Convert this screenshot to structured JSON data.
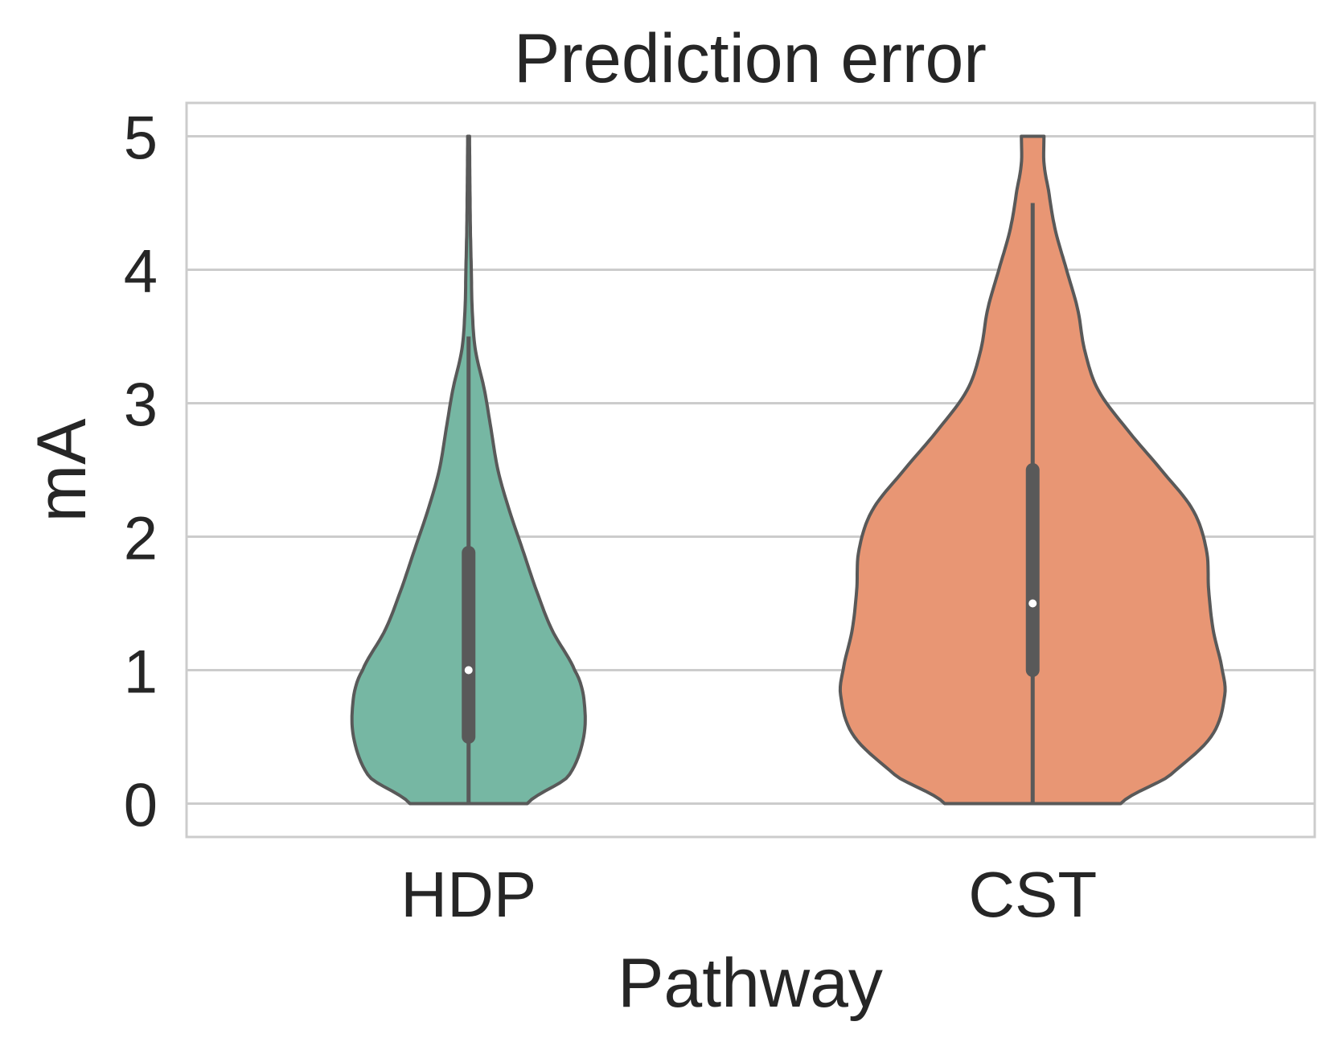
{
  "chart_data": {
    "type": "violin",
    "title": "Prediction error",
    "xlabel": "Pathway",
    "ylabel": "mA",
    "ylim": [
      -0.25,
      5.25
    ],
    "yticks": [
      0,
      1,
      2,
      3,
      4,
      5
    ],
    "grid": true,
    "categories": [
      "HDP",
      "CST"
    ],
    "series": [
      {
        "category": "HDP",
        "color": "#76b7a3",
        "min": 0,
        "q1": 0.5,
        "median": 1.0,
        "q3": 1.88,
        "whisker_high": 3.5,
        "max": 5.0,
        "density": [
          [
            0.0,
            0.26
          ],
          [
            0.2,
            0.44
          ],
          [
            0.5,
            0.51
          ],
          [
            0.8,
            0.51
          ],
          [
            1.0,
            0.47
          ],
          [
            1.3,
            0.37
          ],
          [
            1.6,
            0.3
          ],
          [
            1.9,
            0.24
          ],
          [
            2.2,
            0.18
          ],
          [
            2.5,
            0.13
          ],
          [
            2.8,
            0.1
          ],
          [
            3.1,
            0.07
          ],
          [
            3.4,
            0.03
          ],
          [
            3.7,
            0.016
          ],
          [
            4.0,
            0.012
          ],
          [
            4.3,
            0.008
          ],
          [
            4.6,
            0.006
          ],
          [
            5.0,
            0.004
          ]
        ]
      },
      {
        "category": "CST",
        "color": "#e89674",
        "min": 0,
        "q1": 1.0,
        "median": 1.5,
        "q3": 2.5,
        "whisker_high": 4.5,
        "max": 5.0,
        "density": [
          [
            0.0,
            0.39
          ],
          [
            0.2,
            0.6
          ],
          [
            0.5,
            0.79
          ],
          [
            0.8,
            0.85
          ],
          [
            1.0,
            0.84
          ],
          [
            1.3,
            0.8
          ],
          [
            1.6,
            0.78
          ],
          [
            1.9,
            0.77
          ],
          [
            2.2,
            0.71
          ],
          [
            2.5,
            0.57
          ],
          [
            2.8,
            0.42
          ],
          [
            3.1,
            0.29
          ],
          [
            3.4,
            0.23
          ],
          [
            3.7,
            0.2
          ],
          [
            4.0,
            0.15
          ],
          [
            4.3,
            0.1
          ],
          [
            4.6,
            0.07
          ],
          [
            4.8,
            0.05
          ],
          [
            5.0,
            0.05
          ]
        ]
      }
    ]
  }
}
